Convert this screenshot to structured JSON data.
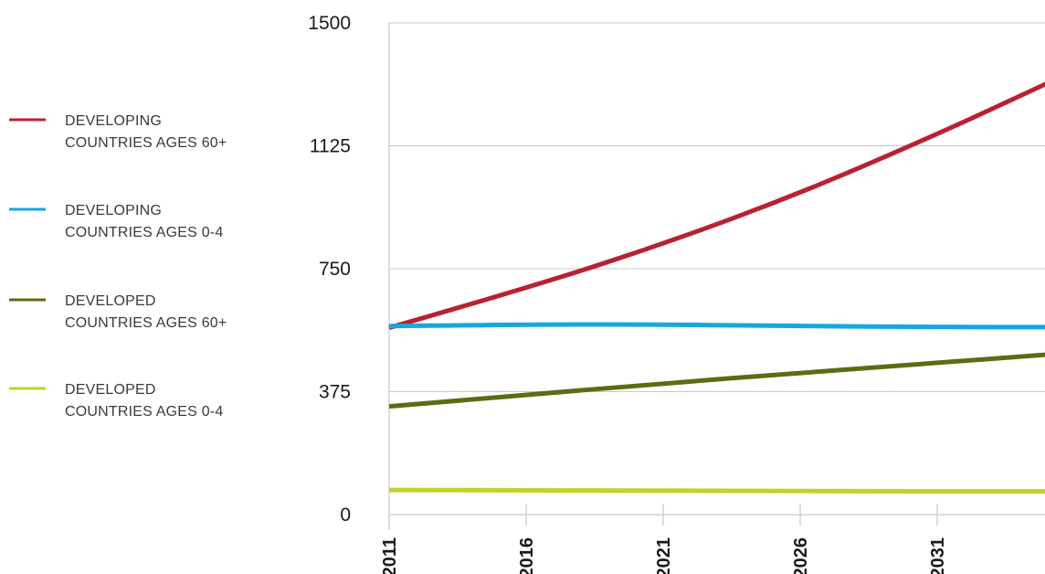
{
  "chart_data": {
    "type": "line",
    "x": [
      2011,
      2016,
      2021,
      2026,
      2031,
      2035
    ],
    "xticks": [
      "2011",
      "2016",
      "2021",
      "2026",
      "2031"
    ],
    "yticks": [
      "0",
      "375",
      "750",
      "1125",
      "1500"
    ],
    "ylim": [
      0,
      1500
    ],
    "xlim": [
      2011,
      2035
    ],
    "grid": "horizontal",
    "legend_position": "left",
    "series": [
      {
        "legend_lines": [
          "DEVELOPING",
          "COUNTRIES AGES 60+"
        ],
        "color": "#b82230",
        "values": [
          570,
          690,
          825,
          980,
          1160,
          1315
        ]
      },
      {
        "legend_lines": [
          "DEVELOPING",
          "COUNTRIES AGES 0-4"
        ],
        "color": "#13a8e0",
        "values": [
          575,
          580,
          580,
          575,
          572,
          572
        ]
      },
      {
        "legend_lines": [
          "DEVELOPED",
          "COUNTRIES AGES 60+"
        ],
        "color": "#586e12",
        "values": [
          330,
          365,
          400,
          432,
          463,
          488
        ]
      },
      {
        "legend_lines": [
          "DEVELOPED",
          "COUNTRIES AGES 0-4"
        ],
        "color": "#c3d12a",
        "values": [
          75,
          74,
          73,
          72,
          71,
          71
        ]
      }
    ]
  }
}
